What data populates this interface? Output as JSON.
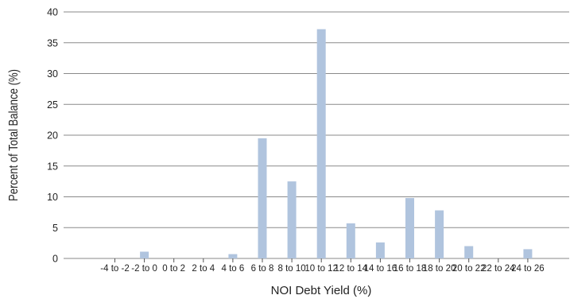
{
  "chart_data": {
    "type": "bar",
    "title": "",
    "xlabel": "NOI Debt Yield (%)",
    "ylabel": "Percent of Total Balance (%)",
    "categories": [
      "-4 to -2",
      "-2 to 0",
      "0 to 2",
      "2 to 4",
      "4 to 6",
      "6 to 8",
      "8 to 10",
      "10 to 12",
      "12 to 14",
      "14 to 16",
      "16 to 18",
      "18 to 20",
      "20 to 22",
      "22 to 24",
      "24 to 26"
    ],
    "values": [
      0,
      1.1,
      0,
      0,
      0.7,
      19.5,
      12.5,
      37.2,
      5.7,
      2.6,
      9.8,
      7.8,
      2.0,
      0,
      1.5
    ],
    "ylim": [
      0,
      40
    ],
    "yticks": [
      0,
      5,
      10,
      15,
      20,
      25,
      30,
      35,
      40
    ],
    "grid": true,
    "legend": "none",
    "bar_color": "#b0c4de",
    "grid_color": "#8a8a8a"
  }
}
